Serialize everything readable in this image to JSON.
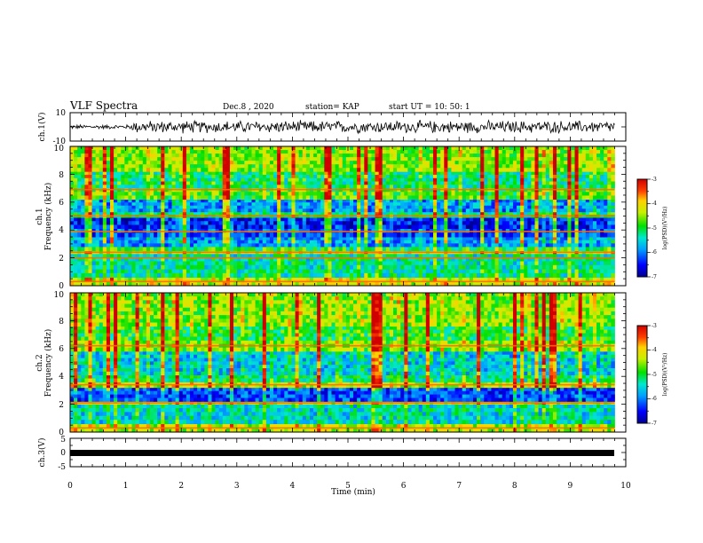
{
  "header": {
    "title": "VLF Spectra",
    "date": "Dec.8 , 2020",
    "station": "station= KAP",
    "start": "start UT =  10: 50: 1"
  },
  "chart_data": [
    {
      "id": "ch1-waveform",
      "type": "line",
      "ylabel": "ch.1(V)",
      "ylim": [
        -10,
        10
      ],
      "yticks": [
        "10",
        "-10"
      ],
      "xlim": [
        0,
        10
      ],
      "series": [
        {
          "x_range": [
            0,
            9.8
          ],
          "baseline": 0,
          "amplitude_approx": 5,
          "color": "#000000"
        }
      ]
    },
    {
      "id": "ch1-spectrogram",
      "type": "heatmap",
      "ylabel": "ch.1\nFrequency (kHz)",
      "ylim": [
        0,
        10
      ],
      "yticks": [
        "0",
        "2",
        "4",
        "6",
        "8",
        "10"
      ],
      "xlim": [
        0,
        10
      ],
      "x_data_range": [
        0,
        9.8
      ],
      "bands": [
        {
          "from": 0.0,
          "to": 0.6,
          "level": -4.3
        },
        {
          "from": 0.6,
          "to": 1.2,
          "level": -5.3
        },
        {
          "from": 1.2,
          "to": 2.3,
          "level": -5.4
        },
        {
          "from": 2.3,
          "to": 2.5,
          "level": -4.2
        },
        {
          "from": 2.5,
          "to": 2.8,
          "level": -5.0
        },
        {
          "from": 2.8,
          "to": 3.5,
          "level": -5.9
        },
        {
          "from": 3.5,
          "to": 4.1,
          "level": -6.3
        },
        {
          "from": 4.1,
          "to": 4.9,
          "level": -6.5
        },
        {
          "from": 4.9,
          "to": 5.3,
          "level": -5.2
        },
        {
          "from": 5.3,
          "to": 6.2,
          "level": -5.9
        },
        {
          "from": 6.2,
          "to": 7.0,
          "level": -4.8
        },
        {
          "from": 7.0,
          "to": 8.2,
          "level": -5.2
        },
        {
          "from": 8.2,
          "to": 10.0,
          "level": -4.6
        }
      ],
      "lines_khz": [
        0.3,
        2.0,
        2.4,
        3.9,
        5.0,
        6.9
      ],
      "colorbar": {
        "label": "log(PSD)(V²/Hz)",
        "range": [
          -7,
          -3
        ],
        "ticks": [
          "-3",
          "-4",
          "-5",
          "-6",
          "-7"
        ]
      }
    },
    {
      "id": "ch2-spectrogram",
      "type": "heatmap",
      "ylabel": "ch.2\nFrequency (kHz)",
      "ylim": [
        0,
        10
      ],
      "yticks": [
        "0",
        "2",
        "4",
        "6",
        "8",
        "10"
      ],
      "xlim": [
        0,
        10
      ],
      "x_data_range": [
        0,
        9.8
      ],
      "bands": [
        {
          "from": 0.0,
          "to": 0.6,
          "level": -4.4
        },
        {
          "from": 0.6,
          "to": 2.0,
          "level": -5.5
        },
        {
          "from": 2.0,
          "to": 2.2,
          "level": -4.3
        },
        {
          "from": 2.2,
          "to": 3.2,
          "level": -6.3
        },
        {
          "from": 3.2,
          "to": 3.6,
          "level": -4.4
        },
        {
          "from": 3.6,
          "to": 4.1,
          "level": -5.2
        },
        {
          "from": 4.1,
          "to": 5.8,
          "level": -5.6
        },
        {
          "from": 5.8,
          "to": 6.6,
          "level": -4.6
        },
        {
          "from": 6.6,
          "to": 7.6,
          "level": -5.0
        },
        {
          "from": 7.6,
          "to": 10.0,
          "level": -4.6
        }
      ],
      "lines_khz": [
        0.3,
        2.1,
        3.4,
        6.2
      ],
      "colorbar": {
        "label": "log(PSD)(V²/Hz)",
        "range": [
          -7,
          -3
        ],
        "ticks": [
          "-3",
          "-4",
          "-5",
          "-6",
          "-7"
        ]
      }
    },
    {
      "id": "ch3-waveform",
      "type": "line",
      "ylabel": "ch.3(V)",
      "ylim": [
        -5,
        5
      ],
      "yticks": [
        "5",
        "0",
        "-5"
      ],
      "xlim": [
        0,
        10
      ],
      "xlabel": "Time (min)",
      "xticks": [
        "0",
        "1",
        "2",
        "3",
        "4",
        "5",
        "6",
        "7",
        "8",
        "9",
        "10"
      ],
      "series": [
        {
          "x_range": [
            0,
            9.8
          ],
          "value": 0,
          "color": "#000000"
        }
      ]
    }
  ]
}
